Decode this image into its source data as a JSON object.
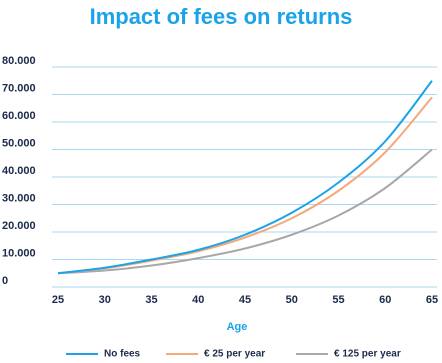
{
  "chart_data": {
    "type": "line",
    "title": "Impact of fees on returns",
    "x_label": "Age",
    "x": [
      25,
      30,
      35,
      40,
      45,
      50,
      55,
      60,
      65
    ],
    "series": [
      {
        "name": "No fees",
        "color": "#1aa3e8",
        "values": [
          5000,
          7000,
          10000,
          13500,
          19000,
          27000,
          38000,
          53000,
          75000
        ]
      },
      {
        "name": "€ 25 per year",
        "color": "#f4a97a",
        "values": [
          5000,
          6800,
          9600,
          13000,
          18000,
          25000,
          35000,
          49000,
          69000
        ]
      },
      {
        "name": "€ 125 per year",
        "color": "#a8a8a8",
        "values": [
          5000,
          6000,
          7800,
          10500,
          14000,
          19000,
          26000,
          36000,
          50000
        ]
      }
    ],
    "xlim": [
      25,
      65
    ],
    "xticks": [
      25,
      30,
      35,
      40,
      45,
      50,
      55,
      60,
      65
    ],
    "ylim": [
      0,
      80000
    ],
    "yticks": [
      0,
      {
        "value": 10000,
        "label": "10.000"
      },
      {
        "value": 20000,
        "label": "20.000"
      },
      {
        "value": 30000,
        "label": "30.000"
      },
      {
        "value": 40000,
        "label": "40.000"
      },
      {
        "value": 50000,
        "label": "50.000"
      },
      {
        "value": 60000,
        "label": "60.000"
      },
      {
        "value": 70000,
        "label": "70.000"
      },
      {
        "value": 80000,
        "label": "80.000"
      }
    ],
    "grid": true,
    "title_color": "#1aa3e8",
    "grid_color": "#a9d8f2",
    "legend": "bottom"
  }
}
